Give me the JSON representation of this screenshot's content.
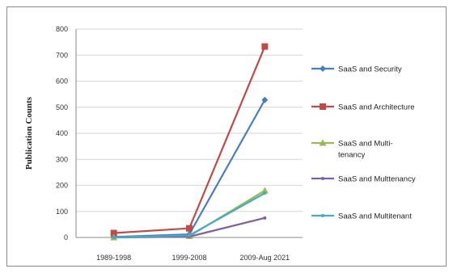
{
  "chart_data": {
    "type": "line",
    "title": "",
    "xlabel": "",
    "ylabel": "Publication Counts",
    "ylim": [
      0,
      800
    ],
    "yticks": [
      0,
      100,
      200,
      300,
      400,
      500,
      600,
      700,
      800
    ],
    "categories": [
      "1989-1998",
      "1999-2008",
      "2009-Aug 2021"
    ],
    "grid": true,
    "legend_position": "right",
    "series": [
      {
        "name": "SaaS and Security",
        "legend_lines": [
          "SaaS and Security"
        ],
        "color": "#4a7ebb",
        "marker": "diamond",
        "values": [
          2,
          12,
          528
        ]
      },
      {
        "name": "SaaS and Architecture",
        "legend_lines": [
          "SaaS and Architecture"
        ],
        "color": "#be4b48",
        "marker": "square",
        "values": [
          17,
          35,
          733
        ]
      },
      {
        "name": "SaaS and Multi-tenancy",
        "legend_lines": [
          "SaaS and Multi-",
          "tenancy"
        ],
        "color": "#98b954",
        "marker": "triangle",
        "values": [
          0,
          5,
          180
        ]
      },
      {
        "name": "SaaS and Multtenancy",
        "legend_lines": [
          "SaaS and Multtenancy"
        ],
        "color": "#7d60a0",
        "marker": "none",
        "values": [
          0,
          3,
          75
        ]
      },
      {
        "name": "SaaS and Multitenant",
        "legend_lines": [
          "SaaS and Multitenant"
        ],
        "color": "#46aac5",
        "marker": "none",
        "values": [
          0,
          8,
          170
        ]
      }
    ]
  }
}
